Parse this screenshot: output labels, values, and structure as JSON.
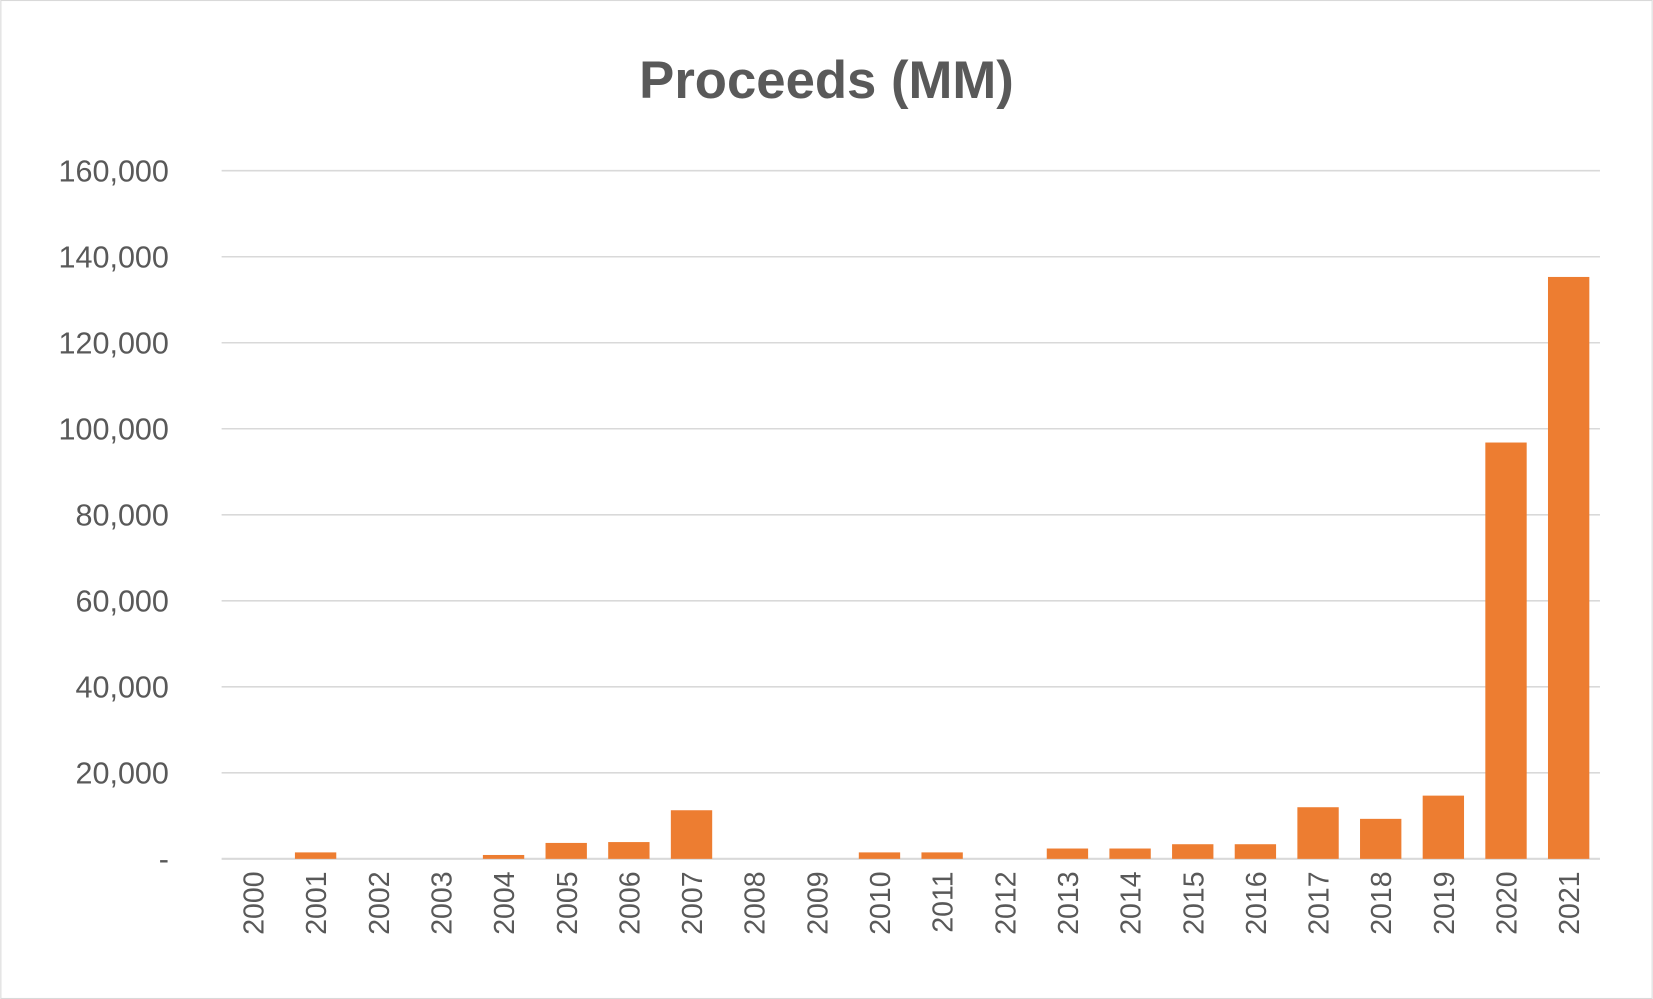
{
  "chart_data": {
    "type": "bar",
    "title": "Proceeds (MM)",
    "xlabel": "",
    "ylabel": "",
    "ylim": [
      0,
      160000
    ],
    "grid": true,
    "legend": "none",
    "bar_color": "#ED7D31",
    "categories": [
      "2000",
      "2001",
      "2002",
      "2003",
      "2004",
      "2005",
      "2006",
      "2007",
      "2008",
      "2009",
      "2010",
      "2011",
      "2012",
      "2013",
      "2014",
      "2015",
      "2016",
      "2017",
      "2018",
      "2019",
      "2020",
      "2021"
    ],
    "values": [
      0,
      1500,
      0,
      0,
      900,
      3700,
      3900,
      11300,
      0,
      0,
      1500,
      1500,
      0,
      2400,
      2400,
      3400,
      3400,
      12000,
      9300,
      14700,
      96800,
      135300
    ],
    "yticks": [
      0,
      20000,
      40000,
      60000,
      80000,
      100000,
      120000,
      140000,
      160000
    ],
    "ytick_labels": [
      "-",
      "20,000",
      "40,000",
      "60,000",
      "80,000",
      "100,000",
      "120,000",
      "140,000",
      "160,000"
    ]
  }
}
